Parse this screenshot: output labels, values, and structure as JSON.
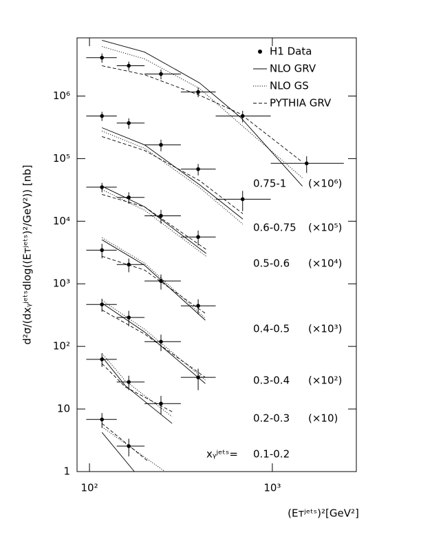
{
  "chart_data": {
    "type": "scatter",
    "x_label": "(Eᴛʲᵉᵗˢ)²[GeV²]",
    "y_label": "d²σ/(dxᵧʲᵉᵗˢdlog((Eᴛʲᵉᵗˢ)²/GeV²)) [nb]",
    "annotation": "xᵧʲᵉᵗˢ=",
    "log_x": true,
    "log_y": true,
    "xlim": [
      85.5,
      2880
    ],
    "ylim": [
      1,
      8500000
    ],
    "xticks": [
      {
        "value": 100,
        "label": "10²"
      },
      {
        "value": 1000,
        "label": "10³"
      }
    ],
    "yticks": [
      1,
      10,
      {
        "value": 100,
        "label": "10²"
      },
      {
        "value": 1000,
        "label": "10³"
      },
      {
        "value": 10000,
        "label": "10⁴"
      },
      {
        "value": 100000,
        "label": "10⁵"
      },
      {
        "value": 1000000,
        "label": "10⁶"
      }
    ],
    "color": "#000000",
    "legend": [
      {
        "name": "H1 Data",
        "style": "marker"
      },
      {
        "name": "NLO GRV",
        "style": "solid"
      },
      {
        "name": "NLO GS",
        "style": "dotted"
      },
      {
        "name": "PYTHIA GRV",
        "style": "dashed"
      }
    ],
    "groups": [
      {
        "bin": "0.75-1",
        "scale": "(×10⁶)",
        "x": [
          117,
          164,
          246,
          393,
          688,
          1540
        ],
        "xlow": [
          96,
          141,
          200,
          316,
          490,
          980
        ],
        "xhigh": [
          141,
          200,
          316,
          490,
          980,
          2460
        ],
        "values": [
          4100000,
          3050000,
          2250000,
          1160000,
          480000,
          84000
        ],
        "yerr": [
          700000,
          500000,
          400000,
          200000,
          100000,
          25000
        ],
        "curves": [
          {
            "x": [
              117,
              200,
              400,
              670,
              1460
            ],
            "values": [
              7760000,
              5050000,
              1620000,
              456000,
              36300
            ]
          },
          {
            "x": [
              117,
              200,
              400,
              670,
              1460
            ],
            "values": [
              6180000,
              3920000,
              1320000,
              354000,
              49200
            ]
          },
          {
            "x": [
              117,
              200,
              400,
              670,
              1460
            ],
            "values": [
              3050000,
              2190000,
              1030000,
              518000,
              88100
            ]
          }
        ]
      },
      {
        "bin": "0.6-0.75",
        "scale": "(×10⁵)",
        "x": [
          117,
          164,
          246,
          393,
          688
        ],
        "xlow": [
          96,
          141,
          200,
          316,
          490
        ],
        "xhigh": [
          141,
          200,
          316,
          490,
          980
        ],
        "values": [
          480000,
          370000,
          166000,
          68000,
          22500
        ],
        "yerr": [
          80000,
          70000,
          35000,
          14000,
          8000
        ],
        "curves": [
          {
            "x": [
              117,
              200,
              400,
              690
            ],
            "values": [
              312000,
              166000,
              38200,
              10800
            ]
          },
          {
            "x": [
              117,
              200,
              400,
              690
            ],
            "values": [
              275000,
              146000,
              34500,
              9000
            ]
          },
          {
            "x": [
              117,
              200,
              400,
              690
            ],
            "values": [
              225000,
              135000,
              44500,
              13200
            ]
          }
        ]
      },
      {
        "bin": "0.5-0.6",
        "scale": "(×10⁴)",
        "x": [
          117,
          164,
          246,
          393
        ],
        "xlow": [
          96,
          141,
          200,
          316
        ],
        "xhigh": [
          141,
          200,
          316,
          490
        ],
        "values": [
          35000,
          24000,
          12200,
          5600
        ],
        "yerr": [
          6000,
          5000,
          3000,
          1500
        ],
        "curves": [
          {
            "x": [
              117,
              200,
              435
            ],
            "values": [
              36300,
              17000,
              3050
            ]
          },
          {
            "x": [
              117,
              200,
              435
            ],
            "values": [
              32000,
              15000,
              2750
            ]
          },
          {
            "x": [
              117,
              200,
              435
            ],
            "values": [
              26800,
              17000,
              3540
            ]
          }
        ]
      },
      {
        "bin": "0.4-0.5",
        "scale": "(×10³)",
        "x": [
          117,
          164,
          246,
          393
        ],
        "xlow": [
          96,
          141,
          200,
          316
        ],
        "xhigh": [
          141,
          200,
          316,
          490
        ],
        "values": [
          3450,
          2030,
          1110,
          445
        ],
        "yerr": [
          900,
          500,
          300,
          120
        ],
        "curves": [
          {
            "x": [
              117,
              200,
              430
            ],
            "values": [
              5050,
              1980,
              262
            ]
          },
          {
            "x": [
              117,
              200,
              430
            ],
            "values": [
              5450,
              2140,
              282
            ]
          },
          {
            "x": [
              117,
              200,
              430
            ],
            "values": [
              2750,
              1660,
              337
            ]
          }
        ]
      },
      {
        "bin": "0.3-0.4",
        "scale": "(×10²)",
        "x": [
          117,
          164,
          246,
          393
        ],
        "xlow": [
          96,
          141,
          200,
          316
        ],
        "xhigh": [
          141,
          200,
          316,
          490
        ],
        "values": [
          468,
          290,
          119,
          32
        ],
        "yerr": [
          110,
          80,
          35,
          12
        ],
        "curves": [
          {
            "x": [
              117,
              200,
              430
            ],
            "values": [
              492,
              170,
              25.5
            ]
          },
          {
            "x": [
              117,
              200,
              430
            ],
            "values": [
              545,
              188,
              29
            ]
          },
          {
            "x": [
              117,
              200,
              430
            ],
            "values": [
              382,
              158,
              32
            ]
          }
        ]
      },
      {
        "bin": "0.2-0.3",
        "scale": "(×10)",
        "x": [
          117,
          164,
          246
        ],
        "xlow": [
          96,
          141,
          200
        ],
        "xhigh": [
          141,
          200,
          316
        ],
        "values": [
          62,
          27,
          12.2
        ],
        "yerr": [
          15,
          7,
          4
        ],
        "curves": [
          {
            "x": [
              117,
              157,
              283
            ],
            "values": [
              68.4,
              23.6,
              5.88
            ]
          },
          {
            "x": [
              117,
              157,
              283
            ],
            "values": [
              77.6,
              28.2,
              7.57
            ]
          },
          {
            "x": [
              117,
              157,
              283
            ],
            "values": [
              53.1,
              22.5,
              9.04
            ]
          }
        ]
      },
      {
        "bin": "0.1-0.2",
        "x": [
          117,
          164
        ],
        "xlow": [
          96,
          141
        ],
        "xhigh": [
          141,
          200
        ],
        "values": [
          6.8,
          2.55
        ],
        "yerr": [
          1.8,
          0.8
        ],
        "curves": [
          {
            "x": [
              117,
              176
            ],
            "values": [
              4.23,
              1
            ]
          },
          {
            "x": [
              117,
              259
            ],
            "values": [
              5.18,
              1
            ]
          },
          {
            "x": [
              117,
              209
            ],
            "values": [
              5.88,
              1.46
            ]
          }
        ]
      }
    ]
  }
}
